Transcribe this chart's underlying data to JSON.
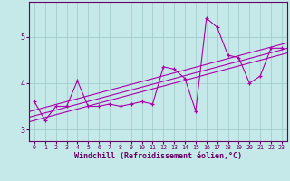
{
  "xlabel": "Windchill (Refroidissement éolien,°C)",
  "x_data": [
    0,
    1,
    2,
    3,
    4,
    5,
    6,
    7,
    8,
    9,
    10,
    11,
    12,
    13,
    14,
    15,
    16,
    17,
    18,
    19,
    20,
    21,
    22,
    23
  ],
  "y_data": [
    3.6,
    3.2,
    3.5,
    3.5,
    4.05,
    3.5,
    3.5,
    3.55,
    3.5,
    3.55,
    3.6,
    3.55,
    4.35,
    4.3,
    4.1,
    3.4,
    5.4,
    5.2,
    4.6,
    4.55,
    4.0,
    4.15,
    4.75,
    4.75
  ],
  "line_color": "#aa00aa",
  "bg_color": "#c5e8e8",
  "grid_color": "#9dc8c8",
  "axis_color": "#660066",
  "tick_color": "#660066",
  "ylim": [
    2.75,
    5.75
  ],
  "xlim": [
    -0.5,
    23.5
  ],
  "yticks": [
    3,
    4,
    5
  ],
  "xticks": [
    0,
    1,
    2,
    3,
    4,
    5,
    6,
    7,
    8,
    9,
    10,
    11,
    12,
    13,
    14,
    15,
    16,
    17,
    18,
    19,
    20,
    21,
    22,
    23
  ],
  "reg_line_offsets": [
    -0.1,
    0.0,
    0.12
  ],
  "marker_size": 3.5,
  "line_width": 0.9
}
